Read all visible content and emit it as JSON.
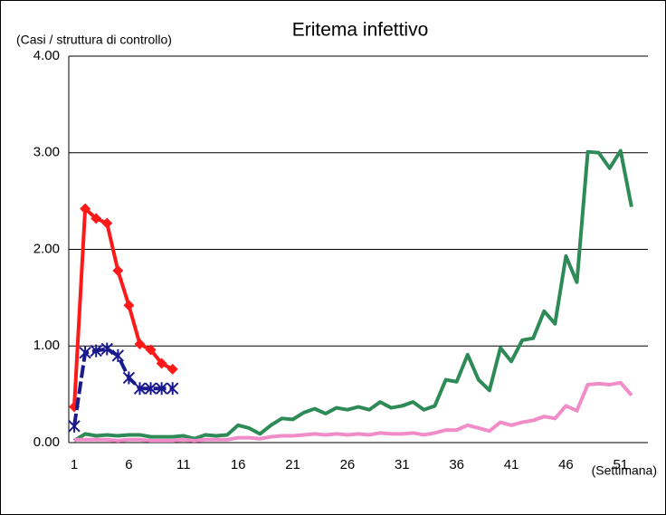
{
  "chart_data": {
    "type": "line",
    "title": "Eritema infettivo",
    "y_label": "(Casi / struttura di controllo)",
    "x_label": "(Settimana)",
    "categories": [
      1,
      null,
      null,
      null,
      null,
      6,
      null,
      null,
      null,
      null,
      11,
      null,
      null,
      null,
      null,
      16,
      null,
      null,
      null,
      null,
      21,
      null,
      null,
      null,
      null,
      26,
      null,
      null,
      null,
      null,
      31,
      null,
      null,
      null,
      null,
      36,
      null,
      null,
      null,
      null,
      41,
      null,
      null,
      null,
      null,
      46,
      null,
      null,
      null,
      null,
      51,
      null,
      null
    ],
    "series": [
      {
        "color": "#2e8b57",
        "values": [
          0.02,
          0.09,
          0.07,
          0.08,
          0.07,
          0.08,
          0.08,
          0.06,
          0.06,
          0.06,
          0.07,
          0.04,
          0.08,
          0.07,
          0.08,
          0.18,
          0.15,
          0.09,
          0.18,
          0.25,
          0.24,
          0.31,
          0.35,
          0.3,
          0.36,
          0.34,
          0.37,
          0.34,
          0.42,
          0.36,
          0.38,
          0.42,
          0.34,
          0.38,
          0.65,
          0.63,
          0.91,
          0.65,
          0.54,
          0.98,
          0.84,
          1.06,
          1.08,
          1.36,
          1.23,
          1.93,
          1.66,
          3.01,
          3.0,
          2.84,
          3.02,
          2.44,
          null
        ]
      },
      {
        "color": "#f08cc8",
        "values": [
          0.03,
          0.03,
          0.03,
          0.03,
          0.02,
          0.03,
          0.03,
          0.02,
          0.02,
          0.02,
          0.03,
          0.02,
          0.03,
          0.03,
          0.03,
          0.05,
          0.05,
          0.04,
          0.06,
          0.07,
          0.07,
          0.08,
          0.09,
          0.08,
          0.09,
          0.08,
          0.09,
          0.08,
          0.1,
          0.09,
          0.09,
          0.1,
          0.08,
          0.1,
          0.13,
          0.13,
          0.18,
          0.15,
          0.12,
          0.21,
          0.18,
          0.21,
          0.23,
          0.27,
          0.25,
          0.38,
          0.33,
          0.6,
          0.61,
          0.6,
          0.62,
          0.49,
          null
        ]
      },
      {
        "color": "#ff1a1a",
        "marker": "diamond",
        "values": [
          0.37,
          2.42,
          2.32,
          2.27,
          1.78,
          1.42,
          1.02,
          0.96,
          0.82,
          0.76,
          null,
          null,
          null,
          null,
          null,
          null,
          null,
          null,
          null,
          null,
          null,
          null,
          null,
          null,
          null,
          null,
          null,
          null,
          null,
          null,
          null,
          null,
          null,
          null,
          null,
          null,
          null,
          null,
          null,
          null,
          null,
          null,
          null,
          null,
          null,
          null,
          null,
          null,
          null,
          null,
          null,
          null,
          null
        ]
      },
      {
        "color": "#1a1a8c",
        "marker": "cross",
        "dashed": true,
        "values": [
          0.17,
          0.93,
          0.95,
          0.97,
          0.9,
          0.67,
          0.56,
          0.56,
          0.56,
          0.56,
          null,
          null,
          null,
          null,
          null,
          null,
          null,
          null,
          null,
          null,
          null,
          null,
          null,
          null,
          null,
          null,
          null,
          null,
          null,
          null,
          null,
          null,
          null,
          null,
          null,
          null,
          null,
          null,
          null,
          null,
          null,
          null,
          null,
          null,
          null,
          null,
          null,
          null,
          null,
          null,
          null,
          null,
          null
        ]
      }
    ],
    "ylim": [
      0,
      4
    ],
    "yticks": [
      {
        "value": 0,
        "label": "0.00"
      },
      {
        "value": 1,
        "label": "1.00"
      },
      {
        "value": 2,
        "label": "2.00"
      },
      {
        "value": 3,
        "label": "3.00"
      },
      {
        "value": 4,
        "label": "4.00"
      }
    ],
    "grid": true
  }
}
